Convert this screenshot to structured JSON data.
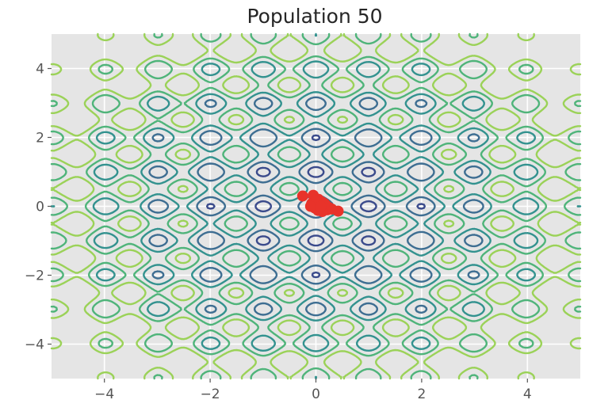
{
  "chart_data": {
    "type": "contour",
    "title": "Population 50",
    "xlabel": "",
    "ylabel": "",
    "xlim": [
      -5,
      5
    ],
    "ylim": [
      -5,
      5
    ],
    "xticks": [
      -4,
      -2,
      0,
      2,
      4
    ],
    "yticks": [
      -4,
      -2,
      0,
      2,
      4
    ],
    "xtick_labels": [
      "−4",
      "−2",
      "0",
      "2",
      "4"
    ],
    "ytick_labels": [
      "−4",
      "−2",
      "0",
      "2",
      "4"
    ],
    "grid": true,
    "style": "ggplot",
    "surface": "rastrigin",
    "contour_levels": [
      5,
      15,
      25,
      35,
      45
    ],
    "colormap": [
      "#3b4b8c",
      "#3e6e92",
      "#33928f",
      "#4fb47a",
      "#9bd258",
      "#d4e34a"
    ],
    "population": {
      "name": "Population",
      "color": "#e8332a",
      "points": [
        {
          "x": -0.25,
          "y": 0.3
        },
        {
          "x": -0.05,
          "y": 0.32
        },
        {
          "x": 0.05,
          "y": 0.2
        },
        {
          "x": 0.12,
          "y": 0.12
        },
        {
          "x": 0.18,
          "y": 0.05
        },
        {
          "x": 0.22,
          "y": -0.1
        },
        {
          "x": 0.42,
          "y": -0.14
        },
        {
          "x": 0.02,
          "y": 0.02
        },
        {
          "x": -0.02,
          "y": -0.05
        },
        {
          "x": 0.08,
          "y": -0.08
        },
        {
          "x": 0.1,
          "y": -0.02
        },
        {
          "x": 0.15,
          "y": -0.12
        },
        {
          "x": -0.08,
          "y": 0.08
        },
        {
          "x": 0.0,
          "y": 0.1
        },
        {
          "x": 0.06,
          "y": 0.04
        },
        {
          "x": 0.2,
          "y": 0.0
        },
        {
          "x": 0.25,
          "y": -0.04
        },
        {
          "x": 0.3,
          "y": -0.08
        },
        {
          "x": 0.12,
          "y": -0.15
        },
        {
          "x": 0.04,
          "y": -0.12
        },
        {
          "x": -0.04,
          "y": 0.05
        },
        {
          "x": 0.16,
          "y": 0.08
        },
        {
          "x": 0.01,
          "y": 0.15
        },
        {
          "x": 0.09,
          "y": 0.0
        },
        {
          "x": -0.1,
          "y": 0.0
        }
      ]
    }
  }
}
